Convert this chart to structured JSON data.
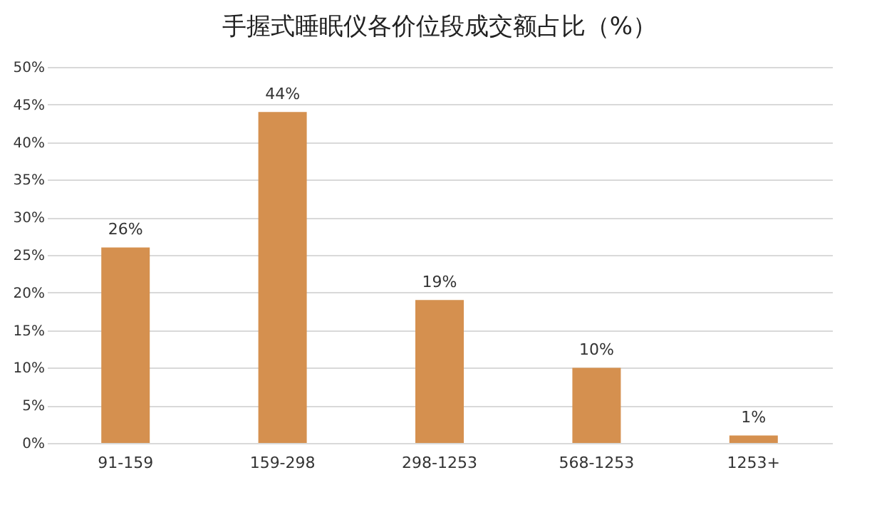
{
  "chart_data": {
    "type": "bar",
    "title": "手握式睡眠仪各价位段成交额占比（%）",
    "categories": [
      "91-159",
      "159-298",
      "298-1253",
      "568-1253",
      "1253+"
    ],
    "values": [
      26,
      44,
      19,
      10,
      1
    ],
    "value_labels": [
      "26%",
      "44%",
      "19%",
      "10%",
      "1%"
    ],
    "color": "#d5904f",
    "ylim": [
      0,
      50
    ],
    "yticks": [
      {
        "value": 0,
        "label": "0%"
      },
      {
        "value": 5,
        "label": "5%"
      },
      {
        "value": 10,
        "label": "10%"
      },
      {
        "value": 15,
        "label": "15%"
      },
      {
        "value": 20,
        "label": "20%"
      },
      {
        "value": 25,
        "label": "25%"
      },
      {
        "value": 30,
        "label": "30%"
      },
      {
        "value": 35,
        "label": "35%"
      },
      {
        "value": 40,
        "label": "40%"
      },
      {
        "value": 45,
        "label": "45%"
      },
      {
        "value": 50,
        "label": "50%"
      }
    ],
    "grid": "y"
  }
}
